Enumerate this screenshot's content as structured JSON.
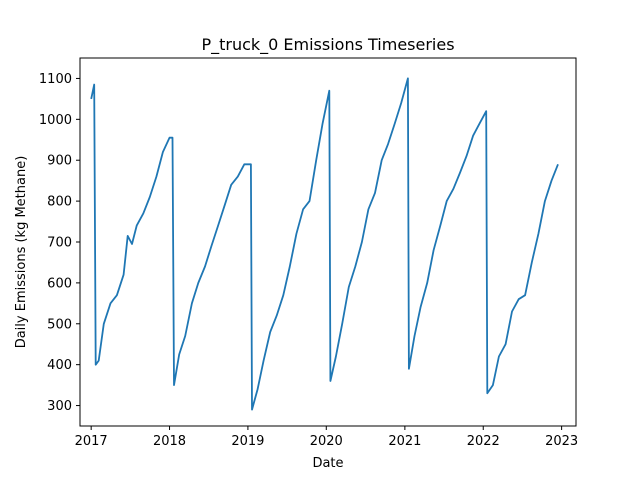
{
  "chart_data": {
    "type": "line",
    "title": "P_truck_0 Emissions Timeseries",
    "xlabel": "Date",
    "ylabel": "Daily Emissions (kg Methane)",
    "xlim": [
      "2016-11-10",
      "2023-03-09"
    ],
    "ylim": [
      250,
      1150
    ],
    "x_ticks": [
      "2017",
      "2018",
      "2019",
      "2020",
      "2021",
      "2022",
      "2023"
    ],
    "y_ticks": [
      300,
      400,
      500,
      600,
      700,
      800,
      900,
      1000,
      1100
    ],
    "grid": false,
    "line_color": "#1f77b4",
    "series": [
      {
        "x": [
          "2017-01-01",
          "2017-01-15",
          "2017-01-22",
          "2017-02-05",
          "2017-03-01",
          "2017-04-01",
          "2017-05-01",
          "2017-06-01",
          "2017-06-20",
          "2017-07-10",
          "2017-08-01",
          "2017-09-01",
          "2017-10-01",
          "2017-11-01",
          "2017-12-01",
          "2018-01-01",
          "2018-01-15",
          "2018-01-22",
          "2018-02-15",
          "2018-03-15",
          "2018-04-15",
          "2018-05-15",
          "2018-06-15",
          "2018-07-15",
          "2018-08-15",
          "2018-09-15",
          "2018-10-15",
          "2018-11-15",
          "2018-12-15",
          "2019-01-15",
          "2019-01-20",
          "2019-02-15",
          "2019-03-15",
          "2019-04-15",
          "2019-05-15",
          "2019-06-15",
          "2019-07-15",
          "2019-08-15",
          "2019-09-15",
          "2019-10-15",
          "2019-11-15",
          "2019-12-15",
          "2020-01-15",
          "2020-01-20",
          "2020-02-15",
          "2020-03-15",
          "2020-04-15",
          "2020-05-15",
          "2020-06-15",
          "2020-07-15",
          "2020-08-15",
          "2020-09-15",
          "2020-10-15",
          "2020-11-15",
          "2020-12-15",
          "2021-01-15",
          "2021-01-20",
          "2021-02-15",
          "2021-03-15",
          "2021-04-15",
          "2021-05-15",
          "2021-06-15",
          "2021-07-15",
          "2021-08-15",
          "2021-09-15",
          "2021-10-15",
          "2021-11-15",
          "2021-12-15",
          "2022-01-15",
          "2022-01-20",
          "2022-02-15",
          "2022-03-15",
          "2022-04-15",
          "2022-05-15",
          "2022-06-15",
          "2022-07-15",
          "2022-08-15",
          "2022-09-15",
          "2022-10-15",
          "2022-11-15",
          "2022-12-15"
        ],
        "values": [
          1050,
          1085,
          400,
          410,
          500,
          550,
          570,
          620,
          715,
          695,
          740,
          770,
          810,
          860,
          920,
          955,
          955,
          350,
          425,
          470,
          550,
          600,
          640,
          690,
          740,
          790,
          840,
          860,
          890,
          890,
          290,
          340,
          410,
          480,
          520,
          570,
          640,
          720,
          780,
          800,
          900,
          990,
          1070,
          360,
          420,
          500,
          590,
          640,
          700,
          780,
          820,
          900,
          940,
          990,
          1040,
          1100,
          390,
          470,
          540,
          600,
          680,
          740,
          800,
          830,
          870,
          910,
          960,
          990,
          1020,
          330,
          350,
          420,
          450,
          530,
          560,
          570,
          650,
          720,
          800,
          850,
          890
        ]
      }
    ]
  }
}
